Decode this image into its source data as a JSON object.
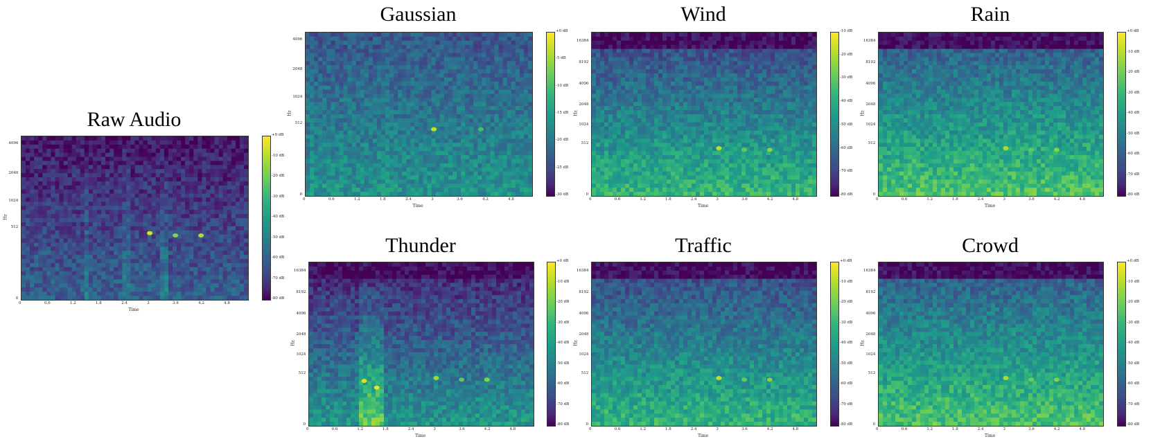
{
  "colormap": [
    "#440154",
    "#482878",
    "#3e4989",
    "#31688e",
    "#26828e",
    "#1f9e89",
    "#35b779",
    "#6ece58",
    "#b5de2b",
    "#fde725"
  ],
  "chart_data": [
    {
      "id": "raw",
      "type": "heatmap",
      "title": "Raw Audio",
      "xlabel": "Time",
      "ylabel": "Hz",
      "xticks": [
        "0",
        "0.6",
        "1.2",
        "1.8",
        "2.4",
        "3",
        "3.6",
        "4.2",
        "4.8"
      ],
      "xlim": [
        0,
        5.3
      ],
      "yticks": [
        "0",
        "512",
        "1024",
        "2048",
        "4096"
      ],
      "colorbar_ticks": [
        "+0 dB",
        "-10 dB",
        "-20 dB",
        "-30 dB",
        "-40 dB",
        "-50 dB",
        "-60 dB",
        "-70 dB",
        "-80 dB"
      ],
      "colorbar_range": [
        0,
        -80
      ],
      "hotspots": [
        {
          "t": 3.0,
          "hz": 450,
          "db": -5
        },
        {
          "t": 3.6,
          "hz": 420,
          "db": -15
        },
        {
          "t": 4.2,
          "hz": 420,
          "db": -10
        }
      ],
      "background_level_db": -65
    },
    {
      "id": "gaussian",
      "type": "heatmap",
      "title": "Gaussian",
      "xlabel": "Time",
      "ylabel": "Hz",
      "xticks": [
        "0",
        "0.6",
        "1.2",
        "1.8",
        "2.4",
        "3",
        "3.6",
        "4.2",
        "4.8"
      ],
      "xlim": [
        0,
        5.3
      ],
      "yticks": [
        "0",
        "512",
        "1024",
        "2048",
        "4096"
      ],
      "colorbar_ticks": [
        "+0 dB",
        "-5 dB",
        "-10 dB",
        "-15 dB",
        "-20 dB",
        "-25 dB",
        "-30 dB"
      ],
      "colorbar_range": [
        0,
        -33
      ],
      "hotspots": [
        {
          "t": 3.0,
          "hz": 450,
          "db": -3
        },
        {
          "t": 4.1,
          "hz": 450,
          "db": -10
        }
      ],
      "background_level_db": -20
    },
    {
      "id": "wind",
      "type": "heatmap",
      "title": "Wind",
      "xlabel": "Time",
      "ylabel": "Hz",
      "xticks": [
        "0",
        "0.6",
        "1.2",
        "1.8",
        "2.4",
        "3",
        "3.6",
        "4.2",
        "4.8"
      ],
      "xlim": [
        0,
        5.3
      ],
      "yticks": [
        "0",
        "512",
        "1024",
        "2048",
        "4096",
        "8192",
        "16384"
      ],
      "colorbar_ticks": [
        "-10 dB",
        "-20 dB",
        "-30 dB",
        "-40 dB",
        "-50 dB",
        "-60 dB",
        "-70 dB",
        "-80 dB"
      ],
      "colorbar_range": [
        0,
        -80
      ],
      "hotspots": [
        {
          "t": 3.0,
          "hz": 450,
          "db": -8
        },
        {
          "t": 3.6,
          "hz": 420,
          "db": -20
        },
        {
          "t": 4.2,
          "hz": 420,
          "db": -15
        }
      ],
      "background_level_db": -45
    },
    {
      "id": "rain",
      "type": "heatmap",
      "title": "Rain",
      "xlabel": "Time",
      "ylabel": "Hz",
      "xticks": [
        "0",
        "0.6",
        "1.2",
        "1.8",
        "2.4",
        "3",
        "3.6",
        "4.2",
        "4.8"
      ],
      "xlim": [
        0,
        5.3
      ],
      "yticks": [
        "0",
        "512",
        "1024",
        "2048",
        "4096",
        "8192",
        "16384"
      ],
      "colorbar_ticks": [
        "+0 dB",
        "-10 dB",
        "-20 dB",
        "-30 dB",
        "-40 dB",
        "-50 dB",
        "-60 dB",
        "-70 dB",
        "-80 dB"
      ],
      "colorbar_range": [
        0,
        -80
      ],
      "hotspots": [
        {
          "t": 3.0,
          "hz": 450,
          "db": -10
        },
        {
          "t": 3.6,
          "hz": 420,
          "db": -20
        },
        {
          "t": 4.2,
          "hz": 420,
          "db": -15
        }
      ],
      "background_level_db": -40
    },
    {
      "id": "thunder",
      "type": "heatmap",
      "title": "Thunder",
      "xlabel": "Time",
      "ylabel": "Hz",
      "xticks": [
        "0",
        "0.6",
        "1.2",
        "1.8",
        "2.4",
        "3",
        "3.6",
        "4.2",
        "4.8"
      ],
      "xlim": [
        0,
        5.3
      ],
      "yticks": [
        "0",
        "512",
        "1024",
        "2048",
        "4096",
        "8192",
        "16384"
      ],
      "colorbar_ticks": [
        "+0 dB",
        "-10 dB",
        "-20 dB",
        "-30 dB",
        "-40 dB",
        "-50 dB",
        "-60 dB",
        "-70 dB",
        "-80 dB"
      ],
      "colorbar_range": [
        0,
        -80
      ],
      "hotspots": [
        {
          "t": 1.3,
          "hz": 400,
          "db": -5
        },
        {
          "t": 1.6,
          "hz": 300,
          "db": -3
        },
        {
          "t": 3.0,
          "hz": 450,
          "db": -12
        },
        {
          "t": 3.6,
          "hz": 420,
          "db": -20
        },
        {
          "t": 4.2,
          "hz": 420,
          "db": -15
        }
      ],
      "background_level_db": -55
    },
    {
      "id": "traffic",
      "type": "heatmap",
      "title": "Traffic",
      "xlabel": "Time",
      "ylabel": "Hz",
      "xticks": [
        "0",
        "0.6",
        "1.2",
        "1.8",
        "2.4",
        "3",
        "3.6",
        "4.2",
        "4.8"
      ],
      "xlim": [
        0,
        5.3
      ],
      "yticks": [
        "0",
        "512",
        "1024",
        "2048",
        "4096",
        "8192",
        "16384"
      ],
      "colorbar_ticks": [
        "+0 dB",
        "-10 dB",
        "-20 dB",
        "-30 dB",
        "-40 dB",
        "-50 dB",
        "-60 dB",
        "-70 dB",
        "-80 dB"
      ],
      "colorbar_range": [
        0,
        -80
      ],
      "hotspots": [
        {
          "t": 3.0,
          "hz": 450,
          "db": -8
        },
        {
          "t": 3.6,
          "hz": 420,
          "db": -20
        },
        {
          "t": 4.2,
          "hz": 420,
          "db": -15
        }
      ],
      "background_level_db": -45
    },
    {
      "id": "crowd",
      "type": "heatmap",
      "title": "Crowd",
      "xlabel": "Time",
      "ylabel": "Hz",
      "xticks": [
        "0",
        "0.6",
        "1.2",
        "1.8",
        "2.4",
        "3",
        "3.6",
        "4.2",
        "4.8"
      ],
      "xlim": [
        0,
        5.3
      ],
      "yticks": [
        "0",
        "512",
        "1024",
        "2048",
        "4096",
        "8192",
        "16384"
      ],
      "colorbar_ticks": [
        "+0 dB",
        "-10 dB",
        "-20 dB",
        "-30 dB",
        "-40 dB",
        "-50 dB",
        "-60 dB",
        "-70 dB",
        "-80 dB"
      ],
      "colorbar_range": [
        0,
        -80
      ],
      "hotspots": [
        {
          "t": 3.0,
          "hz": 450,
          "db": -10
        },
        {
          "t": 3.6,
          "hz": 420,
          "db": -18
        },
        {
          "t": 4.2,
          "hz": 420,
          "db": -15
        }
      ],
      "background_level_db": -40
    }
  ]
}
